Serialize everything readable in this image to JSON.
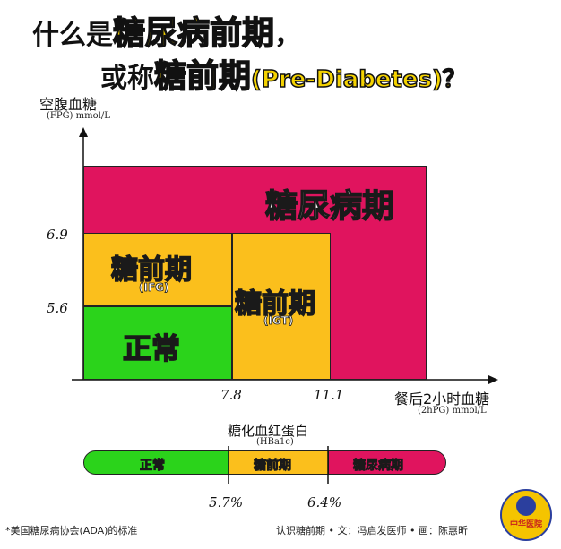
{
  "title": {
    "line1_prefix": "什么是",
    "line1_highlight": "糖尿病前期",
    "line1_suffix": "，",
    "line2_prefix": "或称",
    "line2_highlight": "糖前期",
    "line2_suffix": "(Pre-Diabetes)？"
  },
  "y_axis": {
    "title": "空腹血糖",
    "unit": "(FPG) mmol/L",
    "ticks": [
      "6.9",
      "5.6"
    ]
  },
  "x_axis": {
    "title": "餐后2小时血糖",
    "unit": "(2hPG) mmol/L",
    "ticks": [
      "7.8",
      "11.1"
    ]
  },
  "regions": {
    "diabetes": "糖尿病期",
    "ifg": "糖前期",
    "ifg_sub": "(IFG)",
    "igt": "糖前期",
    "igt_sub": "(IGT)",
    "normal": "正常"
  },
  "hba1c": {
    "title": "糖化血红蛋白",
    "subtitle": "(HBa1c)",
    "normal": "正常",
    "pre": "糖前期",
    "diabetes": "糖尿病期",
    "thresholds": [
      "5.7%",
      "6.4%"
    ]
  },
  "footer": {
    "note": "*美国糖尿病协会(ADA)的标准",
    "credit": "认识糖前期 • 文：冯启发医师 • 画：陈惠昕"
  },
  "logo": {
    "text": "中华医院"
  },
  "colors": {
    "diabetes": "#e0145e",
    "prediabetes": "#fbbf1c",
    "normal": "#2bd31b",
    "title_highlight": "#f5d300"
  },
  "chart_data": {
    "type": "table",
    "x_thresholds": [
      7.8,
      11.1
    ],
    "y_thresholds": [
      5.6,
      6.9
    ],
    "hba1c_thresholds": [
      5.7,
      6.4
    ]
  }
}
